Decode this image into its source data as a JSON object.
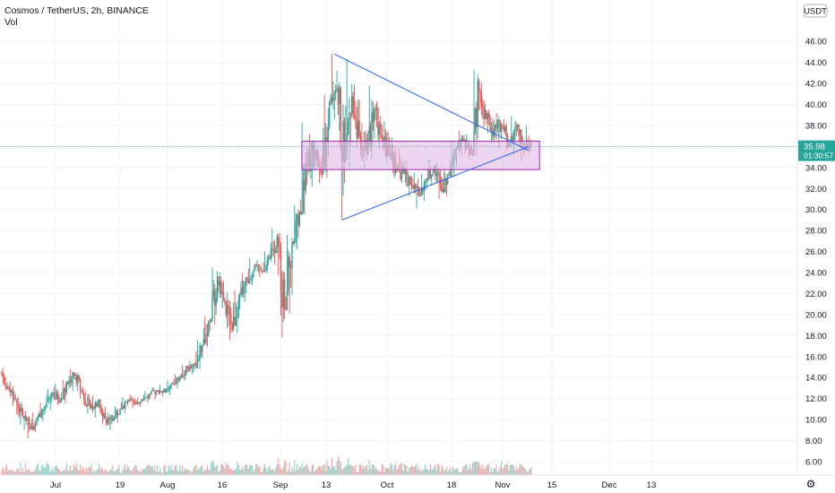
{
  "legend": {
    "title": "Cosmos / TetherUS, 2h, BINANCE",
    "volume_label": "Vol"
  },
  "currency_badge": "USDT",
  "price_label": {
    "price": "35.98",
    "countdown": "01:30:57",
    "color": "#26a69a"
  },
  "colors": {
    "up": "#26a69a",
    "down": "#ef5350",
    "line": "#2962ff",
    "box_fill": "#e1bee7",
    "box_stroke": "#9c27b0"
  },
  "chart_data": {
    "type": "candlestick",
    "title": "Cosmos / TetherUS, 2h, BINANCE",
    "ylabel": "USDT",
    "ylim": [
      4.7,
      47.5
    ],
    "y_ticks": [
      "6.00",
      "8.00",
      "10.00",
      "12.00",
      "14.00",
      "16.00",
      "18.00",
      "20.00",
      "22.00",
      "24.00",
      "26.00",
      "28.00",
      "30.00",
      "32.00",
      "34.00",
      "36.00",
      "38.00",
      "40.00",
      "42.00",
      "44.00",
      "46.00"
    ],
    "x_ticks": [
      "Jul",
      "19",
      "Aug",
      "16",
      "Sep",
      "13",
      "Oct",
      "18",
      "Nov",
      "15",
      "Dec",
      "13"
    ],
    "last_price": 35.98,
    "series": [
      {
        "values": [
          {
            "x": "Jun 23",
            "open": 14.5,
            "high": 14.9,
            "low": 12.8,
            "close": 13.0
          },
          {
            "x": "Jun 25",
            "open": 13.0,
            "high": 13.6,
            "low": 11.3,
            "close": 11.9
          },
          {
            "x": "Jun 27",
            "open": 11.9,
            "high": 12.2,
            "low": 9.5,
            "close": 10.2
          },
          {
            "x": "Jun 29",
            "open": 10.2,
            "high": 10.8,
            "low": 8.2,
            "close": 9.1
          },
          {
            "x": "Jul 1",
            "open": 9.1,
            "high": 10.7,
            "low": 8.8,
            "close": 10.3
          },
          {
            "x": "Jul 3",
            "open": 10.3,
            "high": 11.6,
            "low": 9.8,
            "close": 11.2
          },
          {
            "x": "Jul 5",
            "open": 11.2,
            "high": 12.9,
            "low": 10.9,
            "close": 12.6
          },
          {
            "x": "Jul 7",
            "open": 12.6,
            "high": 13.4,
            "low": 11.4,
            "close": 11.8
          },
          {
            "x": "Jul 9",
            "open": 11.8,
            "high": 13.8,
            "low": 11.5,
            "close": 13.4
          },
          {
            "x": "Jul 11",
            "open": 13.4,
            "high": 14.8,
            "low": 12.7,
            "close": 14.3
          },
          {
            "x": "Jul 13",
            "open": 14.3,
            "high": 14.5,
            "low": 12.0,
            "close": 12.4
          },
          {
            "x": "Jul 15",
            "open": 12.4,
            "high": 12.8,
            "low": 10.6,
            "close": 11.1
          },
          {
            "x": "Jul 17",
            "open": 11.1,
            "high": 12.3,
            "low": 10.2,
            "close": 11.8
          },
          {
            "x": "Jul 19",
            "open": 11.8,
            "high": 12.0,
            "low": 9.6,
            "close": 10.1
          },
          {
            "x": "Jul 21",
            "open": 10.1,
            "high": 10.7,
            "low": 9.0,
            "close": 9.9
          },
          {
            "x": "Jul 23",
            "open": 9.9,
            "high": 11.3,
            "low": 9.7,
            "close": 11.0
          },
          {
            "x": "Jul 25",
            "open": 11.0,
            "high": 12.1,
            "low": 10.6,
            "close": 11.7
          },
          {
            "x": "Jul 27",
            "open": 11.7,
            "high": 12.4,
            "low": 11.1,
            "close": 11.5
          },
          {
            "x": "Jul 29",
            "open": 11.5,
            "high": 12.1,
            "low": 11.2,
            "close": 11.9
          },
          {
            "x": "Jul 31",
            "open": 11.9,
            "high": 12.7,
            "low": 11.6,
            "close": 12.4
          },
          {
            "x": "Aug 2",
            "open": 12.4,
            "high": 13.1,
            "low": 11.9,
            "close": 12.8
          },
          {
            "x": "Aug 4",
            "open": 12.8,
            "high": 13.3,
            "low": 12.2,
            "close": 12.6
          },
          {
            "x": "Aug 6",
            "open": 12.6,
            "high": 13.7,
            "low": 12.3,
            "close": 13.4
          },
          {
            "x": "Aug 8",
            "open": 13.4,
            "high": 14.3,
            "low": 13.0,
            "close": 14.0
          },
          {
            "x": "Aug 10",
            "open": 14.0,
            "high": 15.2,
            "low": 13.7,
            "close": 14.9
          },
          {
            "x": "Aug 12",
            "open": 14.9,
            "high": 15.6,
            "low": 14.3,
            "close": 15.2
          },
          {
            "x": "Aug 14",
            "open": 15.2,
            "high": 17.6,
            "low": 14.8,
            "close": 17.1
          },
          {
            "x": "Aug 16",
            "open": 17.1,
            "high": 19.8,
            "low": 16.9,
            "close": 19.3
          },
          {
            "x": "Aug 18",
            "open": 19.3,
            "high": 24.5,
            "low": 19.0,
            "close": 23.6
          },
          {
            "x": "Aug 20",
            "open": 23.6,
            "high": 24.0,
            "low": 20.6,
            "close": 21.3
          },
          {
            "x": "Aug 22",
            "open": 21.3,
            "high": 22.1,
            "low": 17.5,
            "close": 18.6
          },
          {
            "x": "Aug 24",
            "open": 18.6,
            "high": 22.3,
            "low": 18.2,
            "close": 21.8
          },
          {
            "x": "Aug 26",
            "open": 21.8,
            "high": 23.9,
            "low": 21.2,
            "close": 23.2
          },
          {
            "x": "Aug 28",
            "open": 23.2,
            "high": 25.4,
            "low": 22.8,
            "close": 24.7
          },
          {
            "x": "Aug 30",
            "open": 24.7,
            "high": 25.2,
            "low": 23.6,
            "close": 24.2
          },
          {
            "x": "Sep 1",
            "open": 24.2,
            "high": 26.0,
            "low": 23.9,
            "close": 25.3
          },
          {
            "x": "Sep 3",
            "open": 25.3,
            "high": 28.2,
            "low": 24.8,
            "close": 27.4
          },
          {
            "x": "Sep 5",
            "open": 27.4,
            "high": 27.8,
            "low": 17.8,
            "close": 20.5
          },
          {
            "x": "Sep 7",
            "open": 20.5,
            "high": 27.6,
            "low": 20.1,
            "close": 26.9
          },
          {
            "x": "Sep 9",
            "open": 26.9,
            "high": 30.4,
            "low": 26.2,
            "close": 29.8
          },
          {
            "x": "Sep 11",
            "open": 29.8,
            "high": 38.3,
            "low": 29.5,
            "close": 34.1
          },
          {
            "x": "Sep 13",
            "open": 34.1,
            "high": 37.2,
            "low": 32.2,
            "close": 35.6
          },
          {
            "x": "Sep 15",
            "open": 35.6,
            "high": 36.0,
            "low": 32.5,
            "close": 33.4
          },
          {
            "x": "Sep 17",
            "open": 33.4,
            "high": 40.9,
            "low": 33.0,
            "close": 40.2
          },
          {
            "x": "Sep 19",
            "open": 40.2,
            "high": 44.8,
            "low": 38.6,
            "close": 41.5
          },
          {
            "x": "Sep 21",
            "open": 41.5,
            "high": 42.1,
            "low": 29.0,
            "close": 34.5
          },
          {
            "x": "Sep 23",
            "open": 34.5,
            "high": 44.3,
            "low": 34.0,
            "close": 40.8
          },
          {
            "x": "Sep 25",
            "open": 40.8,
            "high": 41.9,
            "low": 35.9,
            "close": 37.0
          },
          {
            "x": "Sep 27",
            "open": 37.0,
            "high": 38.2,
            "low": 33.8,
            "close": 35.2
          },
          {
            "x": "Sep 29",
            "open": 35.2,
            "high": 41.8,
            "low": 34.8,
            "close": 39.6
          },
          {
            "x": "Oct 1",
            "open": 39.6,
            "high": 40.3,
            "low": 35.8,
            "close": 36.7
          },
          {
            "x": "Oct 3",
            "open": 36.7,
            "high": 38.4,
            "low": 34.3,
            "close": 35.1
          },
          {
            "x": "Oct 5",
            "open": 35.1,
            "high": 36.9,
            "low": 33.0,
            "close": 34.0
          },
          {
            "x": "Oct 7",
            "open": 34.0,
            "high": 35.8,
            "low": 32.5,
            "close": 33.4
          },
          {
            "x": "Oct 9",
            "open": 33.4,
            "high": 34.6,
            "low": 31.3,
            "close": 32.2
          },
          {
            "x": "Oct 11",
            "open": 32.2,
            "high": 33.5,
            "low": 30.1,
            "close": 31.3
          },
          {
            "x": "Oct 13",
            "open": 31.3,
            "high": 33.4,
            "low": 30.8,
            "close": 32.9
          },
          {
            "x": "Oct 15",
            "open": 32.9,
            "high": 34.8,
            "low": 32.3,
            "close": 34.2
          },
          {
            "x": "Oct 17",
            "open": 34.2,
            "high": 34.5,
            "low": 31.0,
            "close": 31.7
          },
          {
            "x": "Oct 19",
            "open": 31.7,
            "high": 33.9,
            "low": 31.3,
            "close": 33.5
          },
          {
            "x": "Oct 21",
            "open": 33.5,
            "high": 36.4,
            "low": 33.1,
            "close": 35.8
          },
          {
            "x": "Oct 23",
            "open": 35.8,
            "high": 37.5,
            "low": 35.1,
            "close": 36.6
          },
          {
            "x": "Oct 25",
            "open": 36.6,
            "high": 37.2,
            "low": 34.8,
            "close": 35.4
          },
          {
            "x": "Oct 27",
            "open": 35.4,
            "high": 43.3,
            "low": 35.1,
            "close": 41.3
          },
          {
            "x": "Oct 29",
            "open": 41.3,
            "high": 42.1,
            "low": 37.8,
            "close": 38.6
          },
          {
            "x": "Oct 31",
            "open": 38.6,
            "high": 39.5,
            "low": 36.3,
            "close": 37.5
          },
          {
            "x": "Nov 2",
            "open": 37.5,
            "high": 39.2,
            "low": 35.9,
            "close": 38.0
          },
          {
            "x": "Nov 4",
            "open": 38.0,
            "high": 38.6,
            "low": 35.5,
            "close": 36.4
          },
          {
            "x": "Nov 6",
            "open": 36.4,
            "high": 38.9,
            "low": 35.2,
            "close": 37.8
          },
          {
            "x": "Nov 8",
            "open": 37.8,
            "high": 38.1,
            "low": 34.6,
            "close": 35.6
          },
          {
            "x": "Nov 10",
            "open": 35.6,
            "high": 38.0,
            "low": 35.3,
            "close": 35.98
          }
        ]
      }
    ],
    "annotations": [
      {
        "type": "trendline",
        "from": {
          "x": "Sep 19",
          "y": 44.8
        },
        "to": {
          "x": "Nov 10",
          "y": 35.6
        }
      },
      {
        "type": "trendline",
        "from": {
          "x": "Sep 21",
          "y": 29.0
        },
        "to": {
          "x": "Nov 10",
          "y": 36.0
        }
      },
      {
        "type": "rectangle",
        "x_range": [
          "Sep 11",
          "Nov 10"
        ],
        "y_range": [
          33.8,
          36.5
        ]
      }
    ]
  }
}
